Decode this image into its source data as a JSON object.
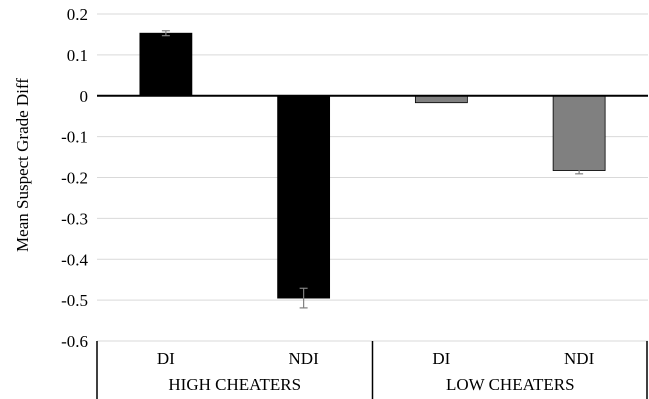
{
  "chart_data": {
    "type": "bar",
    "title": "",
    "xlabel": "",
    "ylabel": "Mean Suspect Grade Diff",
    "ylim": [
      -0.6,
      0.2
    ],
    "y_ticks": [
      "0.2",
      "0.1",
      "0",
      "-0.1",
      "-0.2",
      "-0.3",
      "-0.4",
      "-0.5",
      "-0.6"
    ],
    "grid": true,
    "legend": "none",
    "groups": [
      {
        "label": "HIGH CHEATERS",
        "bars": [
          {
            "category": "DI",
            "value": 0.153,
            "error": 0.006,
            "color": "#000000"
          },
          {
            "category": "NDI",
            "value": -0.495,
            "error": 0.024,
            "color": "#000000"
          }
        ]
      },
      {
        "label": "LOW CHEATERS",
        "bars": [
          {
            "category": "DI",
            "value": -0.017,
            "error": 0.0,
            "color": "#808080"
          },
          {
            "category": "NDI",
            "value": -0.183,
            "error": 0.008,
            "color": "#808080"
          }
        ]
      }
    ]
  }
}
